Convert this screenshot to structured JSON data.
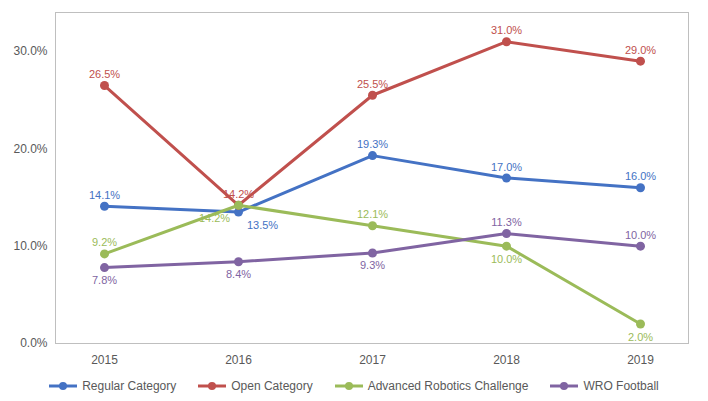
{
  "chart_data": {
    "type": "line",
    "categories": [
      "2015",
      "2016",
      "2017",
      "2018",
      "2019"
    ],
    "series": [
      {
        "name": "Regular Category",
        "color": "#4472c4",
        "marker": "circle",
        "values": [
          14.1,
          13.5,
          19.3,
          17.0,
          16.0
        ],
        "value_labels": [
          "14.1%",
          "13.5%",
          "19.3%",
          "17.0%",
          "16.0%"
        ]
      },
      {
        "name": "Open Category",
        "color": "#c0504d",
        "marker": "circle",
        "values": [
          26.5,
          14.2,
          25.5,
          31.0,
          29.0
        ],
        "value_labels": [
          "26.5%",
          "14.2%",
          "25.5%",
          "31.0%",
          "29.0%"
        ]
      },
      {
        "name": "Advanced Robotics Challenge",
        "color": "#9bbb59",
        "marker": "circle",
        "values": [
          9.2,
          14.2,
          12.1,
          10.0,
          2.0
        ],
        "value_labels": [
          "9.2%",
          "14.2%",
          "12.1%",
          "10.0%",
          "2.0%"
        ]
      },
      {
        "name": "WRO Football",
        "color": "#8064a2",
        "marker": "circle",
        "values": [
          7.8,
          8.4,
          9.3,
          11.3,
          10.0
        ],
        "value_labels": [
          "7.8%",
          "8.4%",
          "9.3%",
          "11.3%",
          "10.0%"
        ]
      }
    ],
    "ylim": [
      0,
      34
    ],
    "yticks": [
      {
        "value": 0,
        "label": "0.0%"
      },
      {
        "value": 10,
        "label": "10.0%"
      },
      {
        "value": 20,
        "label": "20.0%"
      },
      {
        "value": 30,
        "label": "30.0%"
      }
    ],
    "grid": false,
    "data_labels": true,
    "legend": "bottom"
  }
}
